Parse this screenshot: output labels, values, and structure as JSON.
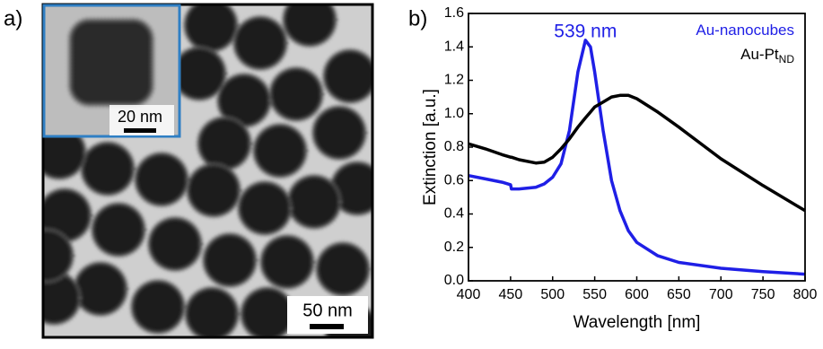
{
  "image_panel": {
    "panel_label": "a)",
    "inset_scale_label": "20 nm",
    "scale_label": "50 nm"
  },
  "chart_data": {
    "type": "line",
    "panel_label": "b)",
    "xlabel": "Wavelength [nm]",
    "ylabel": "Extinction [a.u.]",
    "annotation": "539 nm",
    "x": [
      400,
      420,
      440,
      450,
      451,
      460,
      480,
      490,
      500,
      510,
      520,
      530,
      539,
      545,
      550,
      560,
      570,
      580,
      590,
      600,
      625,
      650,
      700,
      750,
      800
    ],
    "series": [
      {
        "name": "Au-nanocubes",
        "color": "#1f1fe6",
        "values": [
          0.63,
          0.61,
          0.59,
          0.575,
          0.55,
          0.55,
          0.56,
          0.58,
          0.62,
          0.7,
          0.9,
          1.25,
          1.44,
          1.4,
          1.25,
          0.9,
          0.6,
          0.42,
          0.3,
          0.23,
          0.15,
          0.11,
          0.075,
          0.055,
          0.04
        ]
      },
      {
        "name": "Au-Pt",
        "name_subscript": "ND",
        "color": "#000000",
        "values": [
          0.82,
          0.79,
          0.755,
          0.74,
          0.74,
          0.725,
          0.705,
          0.71,
          0.74,
          0.79,
          0.85,
          0.92,
          0.975,
          1.01,
          1.04,
          1.07,
          1.1,
          1.11,
          1.11,
          1.09,
          1.01,
          0.92,
          0.73,
          0.57,
          0.42
        ]
      }
    ],
    "xlim": [
      400,
      800
    ],
    "xticks": [
      400,
      450,
      500,
      550,
      600,
      650,
      700,
      750,
      800
    ],
    "ylim": [
      0,
      1.6
    ],
    "yticks": [
      {
        "value": 0,
        "label": "0.0"
      },
      0.2,
      0.4,
      0.6,
      0.8,
      {
        "value": 1,
        "label": "1.0"
      },
      1.2,
      1.4,
      1.6
    ]
  }
}
